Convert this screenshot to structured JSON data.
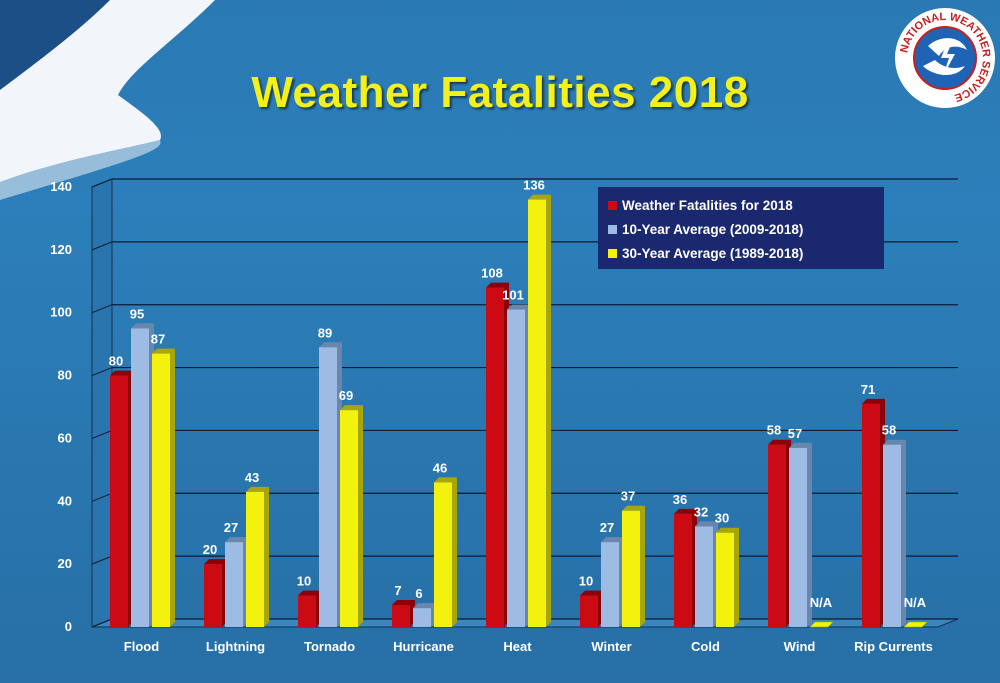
{
  "title": "Weather Fatalities 2018",
  "logo": {
    "text": "NATIONAL WEATHER SERVICE",
    "icon": "nws-logo-icon"
  },
  "colors": {
    "series": [
      "#cc0a14",
      "#9dbbe3",
      "#f2f20e"
    ],
    "series_dark": [
      "#8c0008",
      "#6b86ad",
      "#a9a60a"
    ],
    "grid": "#0d1b33"
  },
  "chart_data": {
    "type": "bar",
    "title": "Weather Fatalities 2018",
    "categories": [
      "Flood",
      "Lightning",
      "Tornado",
      "Hurricane",
      "Heat",
      "Winter",
      "Cold",
      "Wind",
      "Rip Currents"
    ],
    "series": [
      {
        "name": "Weather Fatalities for 2018",
        "values": [
          80,
          20,
          10,
          7,
          108,
          10,
          36,
          58,
          71
        ]
      },
      {
        "name": "10-Year Average (2009-2018)",
        "values": [
          95,
          27,
          89,
          6,
          101,
          27,
          32,
          57,
          58
        ]
      },
      {
        "name": "30-Year Average (1989-2018)",
        "values": [
          87,
          43,
          69,
          46,
          136,
          37,
          30,
          null,
          null
        ],
        "missing_label": "N/A"
      }
    ],
    "ylim": [
      0,
      140
    ],
    "yticks": [
      0,
      20,
      40,
      60,
      80,
      100,
      120,
      140
    ],
    "grid": true,
    "legend_position": "top-right"
  }
}
